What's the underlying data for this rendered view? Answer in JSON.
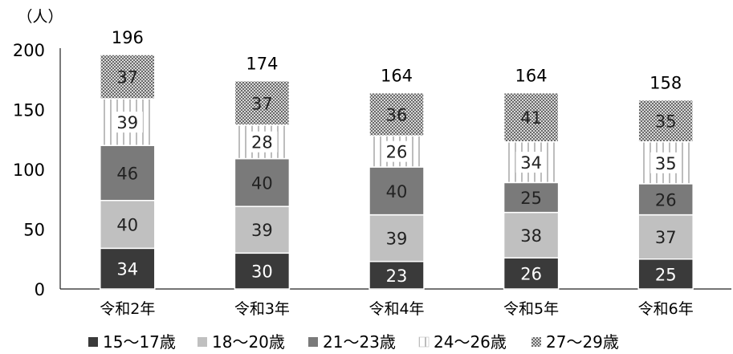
{
  "chart_data": {
    "type": "bar",
    "stacked": true,
    "categories": [
      "令和2年",
      "令和3年",
      "令和4年",
      "令和5年",
      "令和6年"
    ],
    "totals": [
      196,
      174,
      164,
      164,
      158
    ],
    "series": [
      {
        "name": "15〜17歳",
        "values": [
          34,
          30,
          23,
          26,
          25
        ],
        "color": "#3a3a3a",
        "pattern": "solid-dark"
      },
      {
        "name": "18〜20歳",
        "values": [
          40,
          39,
          39,
          38,
          37
        ],
        "color": "#c0c0c0",
        "pattern": "solid-light"
      },
      {
        "name": "21〜23歳",
        "values": [
          46,
          40,
          40,
          25,
          26
        ],
        "color": "#7a7a7a",
        "pattern": "solid-mid"
      },
      {
        "name": "24〜26歳",
        "values": [
          39,
          28,
          26,
          34,
          35
        ],
        "color": "#ffffff",
        "pattern": "vertical-dash"
      },
      {
        "name": "27〜29歳",
        "values": [
          37,
          37,
          36,
          41,
          35
        ],
        "color": "#9a9a9a",
        "pattern": "checker"
      }
    ],
    "ylabel": "（人）",
    "ylim": [
      0,
      200
    ],
    "yticks": [
      0,
      50,
      100,
      150,
      200
    ],
    "grid": false,
    "legend": "bottom"
  }
}
